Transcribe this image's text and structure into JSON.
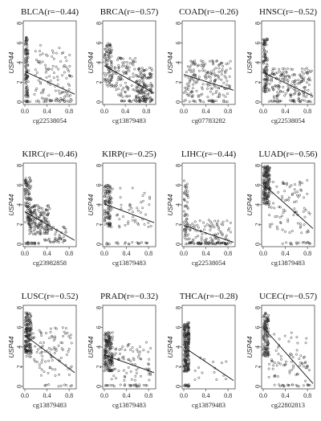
{
  "chart_data": [
    {
      "type": "scatter",
      "title": "BLCA(r=−0.44)",
      "xlabel": "cg22538054",
      "ylabel": "USP44",
      "xlim": [
        0,
        0.9
      ],
      "ylim": [
        0,
        8
      ],
      "trend": [
        [
          0.0,
          3.1
        ],
        [
          0.9,
          0.8
        ]
      ],
      "xticks": [
        0.0,
        0.4,
        0.8
      ],
      "xtick_labels": [
        "0.0",
        "0.4",
        "0.8"
      ],
      "yticks": [
        0,
        2,
        4,
        6,
        8
      ],
      "ytick_labels": [
        "0",
        "2",
        "4",
        "6",
        "8"
      ],
      "clusters": [
        {
          "x": [
            0.0,
            0.06
          ],
          "y": [
            0,
            6.8
          ],
          "n": 110
        },
        {
          "x": [
            0.05,
            0.85
          ],
          "y": [
            0,
            5.8
          ],
          "n": 110
        },
        {
          "x": [
            0.02,
            0.85
          ],
          "y": [
            0,
            0.2
          ],
          "n": 20
        }
      ]
    },
    {
      "type": "scatter",
      "title": "BRCA(r=−0.57)",
      "xlabel": "cg13879483",
      "ylabel": "USP44",
      "xlim": [
        0,
        0.95
      ],
      "ylim": [
        0,
        8
      ],
      "trend": [
        [
          0.0,
          3.7
        ],
        [
          0.95,
          0.9
        ]
      ],
      "xticks": [
        0.0,
        0.4,
        0.8
      ],
      "xtick_labels": [
        "0.0",
        "0.4",
        "0.8"
      ],
      "yticks": [
        0,
        2,
        4,
        6,
        8
      ],
      "ytick_labels": [
        "0",
        "2",
        "4",
        "6",
        "8"
      ],
      "clusters": [
        {
          "x": [
            0.0,
            0.15
          ],
          "y": [
            1.5,
            6.0
          ],
          "n": 90
        },
        {
          "x": [
            0.15,
            0.6
          ],
          "y": [
            0.5,
            4.5
          ],
          "n": 90
        },
        {
          "x": [
            0.6,
            0.92
          ],
          "y": [
            0.2,
            3.5
          ],
          "n": 140
        },
        {
          "x": [
            0.3,
            0.92
          ],
          "y": [
            0,
            0.2
          ],
          "n": 30
        }
      ]
    },
    {
      "type": "scatter",
      "title": "COAD(r=−0.26)",
      "xlabel": "cg07783282",
      "ylabel": "USP44",
      "xlim": [
        0,
        0.9
      ],
      "ylim": [
        0,
        8
      ],
      "trend": [
        [
          0.0,
          2.8
        ],
        [
          0.9,
          1.2
        ]
      ],
      "xticks": [
        0.0,
        0.4,
        0.8
      ],
      "xtick_labels": [
        "0.0",
        "0.4",
        "0.8"
      ],
      "yticks": [
        0,
        2,
        4,
        6,
        8
      ],
      "ytick_labels": [
        "0",
        "2",
        "4",
        "6",
        "8"
      ],
      "clusters": [
        {
          "x": [
            0.0,
            0.85
          ],
          "y": [
            0.5,
            4.2
          ],
          "n": 170
        },
        {
          "x": [
            0.0,
            0.85
          ],
          "y": [
            0,
            0.2
          ],
          "n": 25
        }
      ]
    },
    {
      "type": "scatter",
      "title": "HNSC(r=−0.52)",
      "xlabel": "cg22538054",
      "ylabel": "USP44",
      "xlim": [
        0,
        0.9
      ],
      "ylim": [
        0,
        8
      ],
      "trend": [
        [
          0.0,
          3.0
        ],
        [
          0.9,
          0.6
        ]
      ],
      "xticks": [
        0.0,
        0.4,
        0.8
      ],
      "xtick_labels": [
        "0.0",
        "0.4",
        "0.8"
      ],
      "yticks": [
        0,
        2,
        4,
        6,
        8
      ],
      "ytick_labels": [
        "0",
        "2",
        "4",
        "6",
        "8"
      ],
      "clusters": [
        {
          "x": [
            0.0,
            0.08
          ],
          "y": [
            1.0,
            6.5
          ],
          "n": 110
        },
        {
          "x": [
            0.1,
            0.88
          ],
          "y": [
            0.3,
            3.5
          ],
          "n": 160
        },
        {
          "x": [
            0.1,
            0.88
          ],
          "y": [
            0,
            0.2
          ],
          "n": 30
        }
      ]
    },
    {
      "type": "scatter",
      "title": "KIRC(r=−0.46)",
      "xlabel": "cg23982858",
      "ylabel": "USP44",
      "xlim": [
        0,
        0.9
      ],
      "ylim": [
        0,
        8
      ],
      "trend": [
        [
          0.0,
          3.3
        ],
        [
          0.9,
          0.4
        ]
      ],
      "xticks": [
        0.0,
        0.4,
        0.8
      ],
      "xtick_labels": [
        "0.0",
        "0.4",
        "0.8"
      ],
      "yticks": [
        0,
        2,
        4,
        6,
        8
      ],
      "ytick_labels": [
        "0",
        "2",
        "4",
        "6",
        "8"
      ],
      "clusters": [
        {
          "x": [
            0.0,
            0.12
          ],
          "y": [
            2.0,
            6.8
          ],
          "n": 90
        },
        {
          "x": [
            0.05,
            0.45
          ],
          "y": [
            1.0,
            4.0
          ],
          "n": 160
        },
        {
          "x": [
            0.35,
            0.75
          ],
          "y": [
            0.2,
            1.8
          ],
          "n": 50
        },
        {
          "x": [
            0.0,
            0.3
          ],
          "y": [
            0,
            0.2
          ],
          "n": 20
        }
      ]
    },
    {
      "type": "scatter",
      "title": "KIRP(r=−0.25)",
      "xlabel": "cg13879483",
      "ylabel": "USP44",
      "xlim": [
        0,
        0.9
      ],
      "ylim": [
        0,
        8
      ],
      "trend": [
        [
          0.0,
          4.1
        ],
        [
          0.9,
          2.2
        ]
      ],
      "xticks": [
        0.0,
        0.4,
        0.8
      ],
      "xtick_labels": [
        "0.0",
        "0.4",
        "0.8"
      ],
      "yticks": [
        0,
        2,
        4,
        6,
        8
      ],
      "ytick_labels": [
        "0",
        "2",
        "4",
        "6",
        "8"
      ],
      "clusters": [
        {
          "x": [
            0.0,
            0.12
          ],
          "y": [
            1.8,
            6.2
          ],
          "n": 110
        },
        {
          "x": [
            0.1,
            0.85
          ],
          "y": [
            1.5,
            5.8
          ],
          "n": 50
        },
        {
          "x": [
            0.0,
            0.85
          ],
          "y": [
            0,
            0.2
          ],
          "n": 20
        }
      ]
    },
    {
      "type": "scatter",
      "title": "LIHC(r=−0.44)",
      "xlabel": "cg22538054",
      "ylabel": "USP44",
      "xlim": [
        0,
        0.9
      ],
      "ylim": [
        0,
        8
      ],
      "trend": [
        [
          0.0,
          1.9
        ],
        [
          0.9,
          0.2
        ]
      ],
      "xticks": [
        0.0,
        0.4,
        0.8
      ],
      "xtick_labels": [
        "0.0",
        "0.4",
        "0.8"
      ],
      "yticks": [
        0,
        2,
        4,
        6,
        8
      ],
      "ytick_labels": [
        "0",
        "2",
        "4",
        "6",
        "8"
      ],
      "clusters": [
        {
          "x": [
            0.0,
            0.08
          ],
          "y": [
            0.5,
            6.5
          ],
          "n": 60
        },
        {
          "x": [
            0.1,
            0.85
          ],
          "y": [
            0.1,
            2.5
          ],
          "n": 80
        },
        {
          "x": [
            0.0,
            0.85
          ],
          "y": [
            0,
            0.2
          ],
          "n": 60
        }
      ]
    },
    {
      "type": "scatter",
      "title": "LUAD(r=−0.56)",
      "xlabel": "cg13879483",
      "ylabel": "USP44",
      "xlim": [
        0,
        0.9
      ],
      "ylim": [
        0,
        8
      ],
      "trend": [
        [
          0.0,
          6.1
        ],
        [
          0.9,
          1.6
        ]
      ],
      "xticks": [
        0.0,
        0.4,
        0.8
      ],
      "xtick_labels": [
        "0.0",
        "0.4",
        "0.8"
      ],
      "yticks": [
        0,
        2,
        4,
        6,
        8
      ],
      "ytick_labels": [
        "0",
        "2",
        "4",
        "6",
        "8"
      ],
      "clusters": [
        {
          "x": [
            0.0,
            0.12
          ],
          "y": [
            4.0,
            8.0
          ],
          "n": 170
        },
        {
          "x": [
            0.1,
            0.85
          ],
          "y": [
            1.0,
            6.5
          ],
          "n": 90
        },
        {
          "x": [
            0.3,
            0.85
          ],
          "y": [
            0,
            0.2
          ],
          "n": 15
        }
      ]
    },
    {
      "type": "scatter",
      "title": "LUSC(r=−0.52)",
      "xlabel": "cg13879483",
      "ylabel": "USP44",
      "xlim": [
        0,
        0.9
      ],
      "ylim": [
        0,
        8
      ],
      "trend": [
        [
          0.0,
          5.2
        ],
        [
          0.9,
          1.4
        ]
      ],
      "xticks": [
        0.0,
        0.4,
        0.8
      ],
      "xtick_labels": [
        "0.0",
        "0.4",
        "0.8"
      ],
      "yticks": [
        0,
        2,
        4,
        6,
        8
      ],
      "ytick_labels": [
        "0",
        "2",
        "4",
        "6",
        "8"
      ],
      "clusters": [
        {
          "x": [
            0.0,
            0.12
          ],
          "y": [
            3.0,
            7.5
          ],
          "n": 170
        },
        {
          "x": [
            0.1,
            0.85
          ],
          "y": [
            1.0,
            6.0
          ],
          "n": 90
        },
        {
          "x": [
            0.3,
            0.85
          ],
          "y": [
            0,
            0.2
          ],
          "n": 10
        }
      ]
    },
    {
      "type": "scatter",
      "title": "PRAD(r=−0.32)",
      "xlabel": "cg13879483",
      "ylabel": "USP44",
      "xlim": [
        0,
        0.9
      ],
      "ylim": [
        0,
        8
      ],
      "trend": [
        [
          0.0,
          3.2
        ],
        [
          0.9,
          1.4
        ]
      ],
      "xticks": [
        0.0,
        0.4,
        0.8
      ],
      "xtick_labels": [
        "0.0",
        "0.4",
        "0.8"
      ],
      "yticks": [
        0,
        2,
        4,
        6,
        8
      ],
      "ytick_labels": [
        "0",
        "2",
        "4",
        "6",
        "8"
      ],
      "clusters": [
        {
          "x": [
            0.0,
            0.15
          ],
          "y": [
            1.5,
            5.5
          ],
          "n": 180
        },
        {
          "x": [
            0.1,
            0.85
          ],
          "y": [
            0.5,
            4.5
          ],
          "n": 80
        },
        {
          "x": [
            0.0,
            0.85
          ],
          "y": [
            0,
            0.2
          ],
          "n": 25
        }
      ]
    },
    {
      "type": "scatter",
      "title": "THCA(r=−0.28)",
      "xlabel": "cg13879483",
      "ylabel": "USP44",
      "xlim": [
        0,
        0.9
      ],
      "ylim": [
        0,
        8
      ],
      "trend": [
        [
          0.0,
          4.0
        ],
        [
          0.9,
          0.6
        ]
      ],
      "xticks": [
        0.0,
        0.4,
        0.8
      ],
      "xtick_labels": [
        "0.0",
        "0.4",
        "0.8"
      ],
      "yticks": [
        0,
        2,
        4,
        6,
        8
      ],
      "ytick_labels": [
        "0",
        "2",
        "4",
        "6",
        "8"
      ],
      "clusters": [
        {
          "x": [
            0.0,
            0.1
          ],
          "y": [
            1.5,
            6.5
          ],
          "n": 230
        },
        {
          "x": [
            0.1,
            0.8
          ],
          "y": [
            0.5,
            3.5
          ],
          "n": 15
        },
        {
          "x": [
            0.0,
            0.1
          ],
          "y": [
            0,
            0.2
          ],
          "n": 15
        }
      ]
    },
    {
      "type": "scatter",
      "title": "UCEC(r=−0.57)",
      "xlabel": "cg22802813",
      "ylabel": "USP44",
      "xlim": [
        0,
        0.9
      ],
      "ylim": [
        0,
        8
      ],
      "trend": [
        [
          0.0,
          6.0
        ],
        [
          0.9,
          0.3
        ]
      ],
      "xticks": [
        0.0,
        0.4,
        0.8
      ],
      "xtick_labels": [
        "0.0",
        "0.4",
        "0.8"
      ],
      "yticks": [
        0,
        2,
        4,
        6,
        8
      ],
      "ytick_labels": [
        "0",
        "2",
        "4",
        "6",
        "8"
      ],
      "clusters": [
        {
          "x": [
            0.0,
            0.1
          ],
          "y": [
            3.0,
            7.5
          ],
          "n": 130
        },
        {
          "x": [
            0.1,
            0.85
          ],
          "y": [
            0.5,
            5.5
          ],
          "n": 70
        },
        {
          "x": [
            0.2,
            0.85
          ],
          "y": [
            0,
            0.2
          ],
          "n": 20
        }
      ]
    }
  ]
}
